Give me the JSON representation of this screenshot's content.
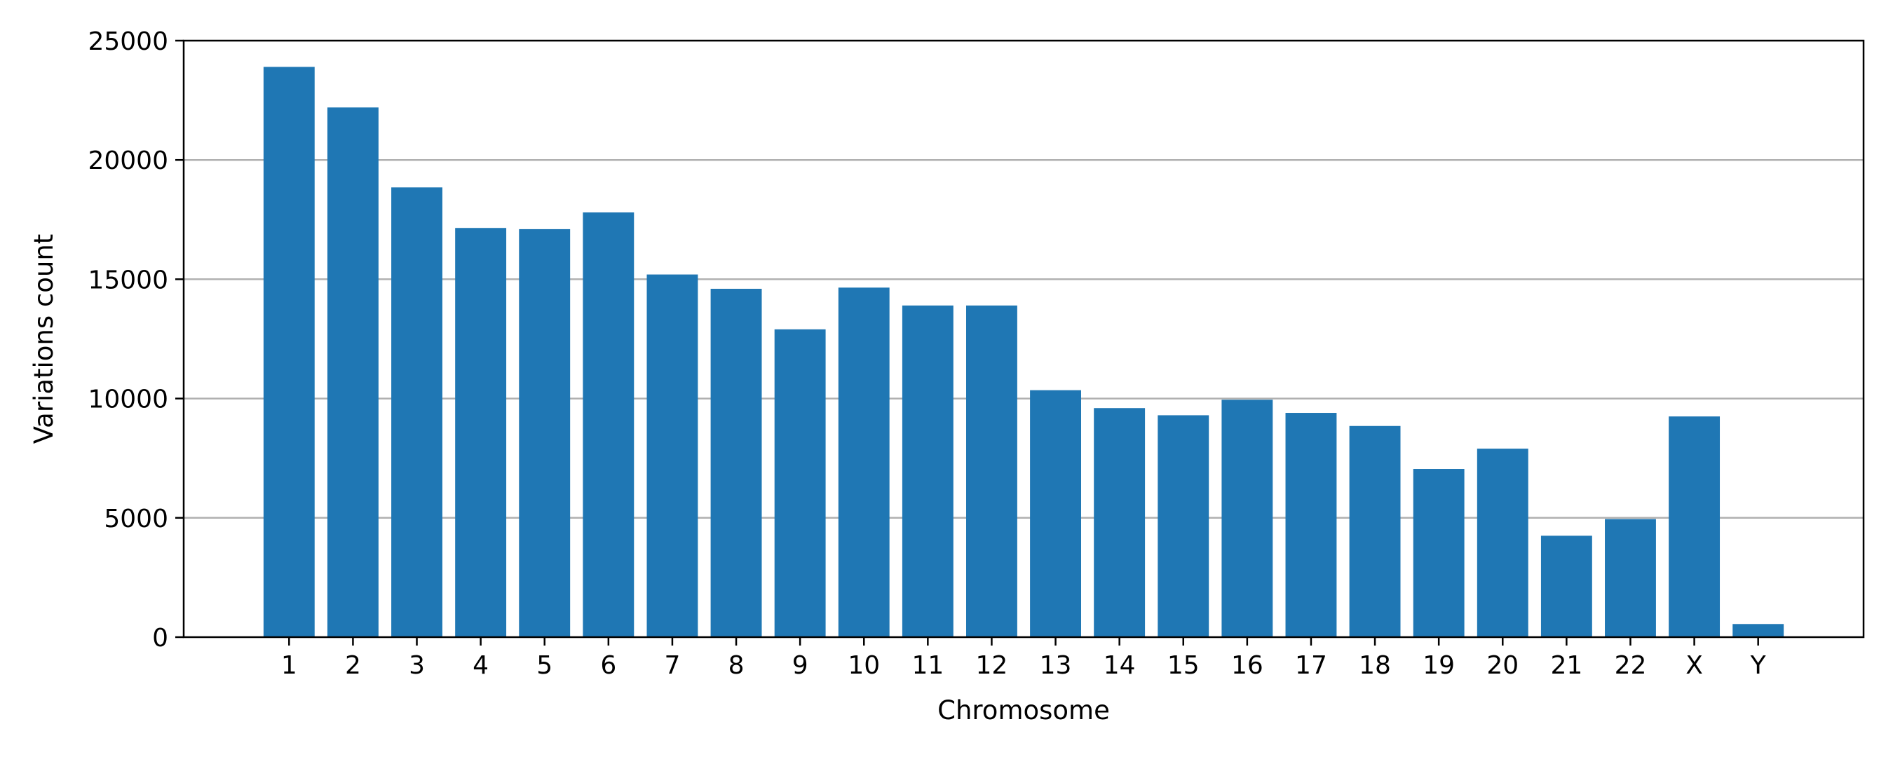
{
  "chart_data": {
    "type": "bar",
    "title": "",
    "xlabel": "Chromosome",
    "ylabel": "Variations count",
    "categories": [
      "1",
      "2",
      "3",
      "4",
      "5",
      "6",
      "7",
      "8",
      "9",
      "10",
      "11",
      "12",
      "13",
      "14",
      "15",
      "16",
      "17",
      "18",
      "19",
      "20",
      "21",
      "22",
      "X",
      "Y"
    ],
    "values": [
      23900,
      22200,
      18850,
      17150,
      17100,
      17800,
      15200,
      14600,
      12900,
      14650,
      13900,
      13900,
      10350,
      9600,
      9300,
      9950,
      9400,
      8850,
      7050,
      7900,
      4250,
      4950,
      9250,
      550
    ],
    "ylim": [
      0,
      25000
    ],
    "yticks": [
      0,
      5000,
      10000,
      15000,
      20000,
      25000
    ],
    "grid": "y",
    "bar_color": "#1f77b4"
  }
}
